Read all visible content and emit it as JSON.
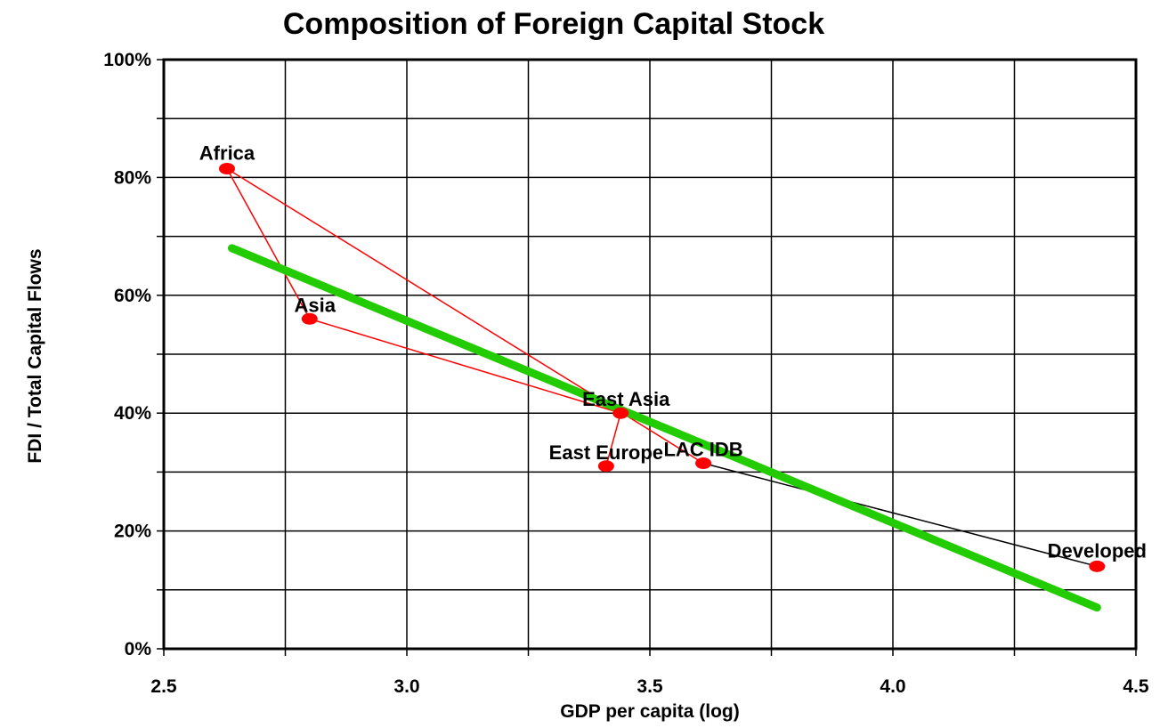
{
  "chart_data": {
    "type": "scatter",
    "title": "Composition of Foreign  Capital Stock",
    "xlabel": "GDP per capita (log)",
    "ylabel": "FDI / Total Capital Flows",
    "xlim": [
      2.5,
      4.5
    ],
    "ylim": [
      0,
      1.0
    ],
    "x_ticks": [
      2.5,
      3.0,
      3.5,
      4.0,
      4.5
    ],
    "x_tick_labels": [
      "2.5",
      "3.0",
      "3.5",
      "4.0",
      "4.5"
    ],
    "y_ticks": [
      0,
      0.2,
      0.4,
      0.6,
      0.8,
      1.0
    ],
    "y_tick_labels": [
      "0%",
      "20%",
      "40%",
      "60%",
      "80%",
      "100%"
    ],
    "grid": true,
    "points": [
      {
        "label": "Africa",
        "x": 2.63,
        "y": 0.815
      },
      {
        "label": "Asia",
        "x": 2.8,
        "y": 0.56
      },
      {
        "label": "East Asia",
        "x": 3.44,
        "y": 0.4
      },
      {
        "label": "East Europe",
        "x": 3.41,
        "y": 0.31
      },
      {
        "label": "LAC IDB",
        "x": 3.61,
        "y": 0.315
      },
      {
        "label": "Developed",
        "x": 4.42,
        "y": 0.14
      }
    ],
    "connectors": [
      {
        "from": "Africa",
        "to": "Asia",
        "color": "#ff0000"
      },
      {
        "from": "Asia",
        "to": "East Asia",
        "color": "#ff0000"
      },
      {
        "from": "East Asia",
        "to": "East Europe",
        "color": "#ff0000"
      },
      {
        "from": "Africa",
        "to": "LAC IDB",
        "color": "#ff0000"
      },
      {
        "from": "LAC IDB",
        "to": "Developed",
        "color": "#000000"
      }
    ],
    "trendline": {
      "x": [
        2.64,
        4.42
      ],
      "y": [
        0.68,
        0.07
      ],
      "color": "#22cc00"
    },
    "point_color": "#ff0000"
  }
}
